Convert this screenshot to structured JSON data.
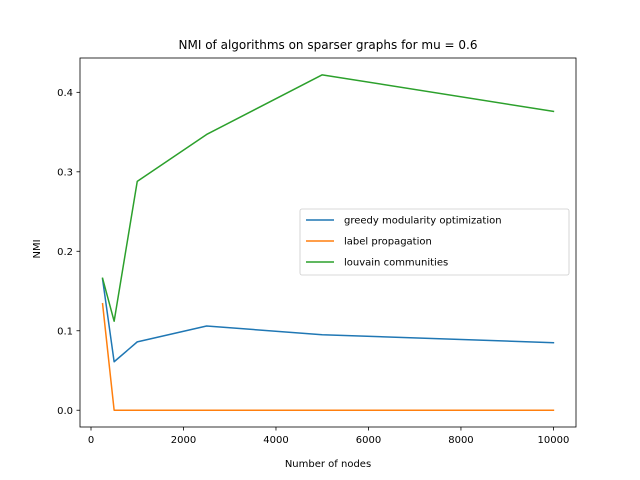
{
  "chart_data": {
    "type": "line",
    "title": "NMI of algorithms on sparser graphs for mu = 0.6",
    "xlabel": "Number of nodes",
    "ylabel": "NMI",
    "xlim": [
      -238,
      10488
    ],
    "ylim": [
      -0.0211,
      0.4432
    ],
    "xticks": [
      0,
      2000,
      4000,
      6000,
      8000,
      10000
    ],
    "xtick_labels": [
      "0",
      "2000",
      "4000",
      "6000",
      "8000",
      "10000"
    ],
    "yticks": [
      0.0,
      0.1,
      0.2,
      0.3,
      0.4
    ],
    "ytick_labels": [
      "0.0",
      "0.1",
      "0.2",
      "0.3",
      "0.4"
    ],
    "grid": false,
    "legend_position": "center-right",
    "x": [
      250,
      500,
      1000,
      2500,
      5000,
      10000
    ],
    "series": [
      {
        "name": "greedy modularity optimization",
        "color": "#1f77b4",
        "values": [
          0.165,
          0.061,
          0.086,
          0.106,
          0.095,
          0.085
        ]
      },
      {
        "name": "label propagation",
        "color": "#ff7f0e",
        "values": [
          0.134,
          0.0,
          0.0,
          0.0,
          0.0,
          0.0
        ]
      },
      {
        "name": "louvain communities",
        "color": "#2ca02c",
        "values": [
          0.166,
          0.112,
          0.288,
          0.347,
          0.422,
          0.376
        ]
      }
    ]
  }
}
